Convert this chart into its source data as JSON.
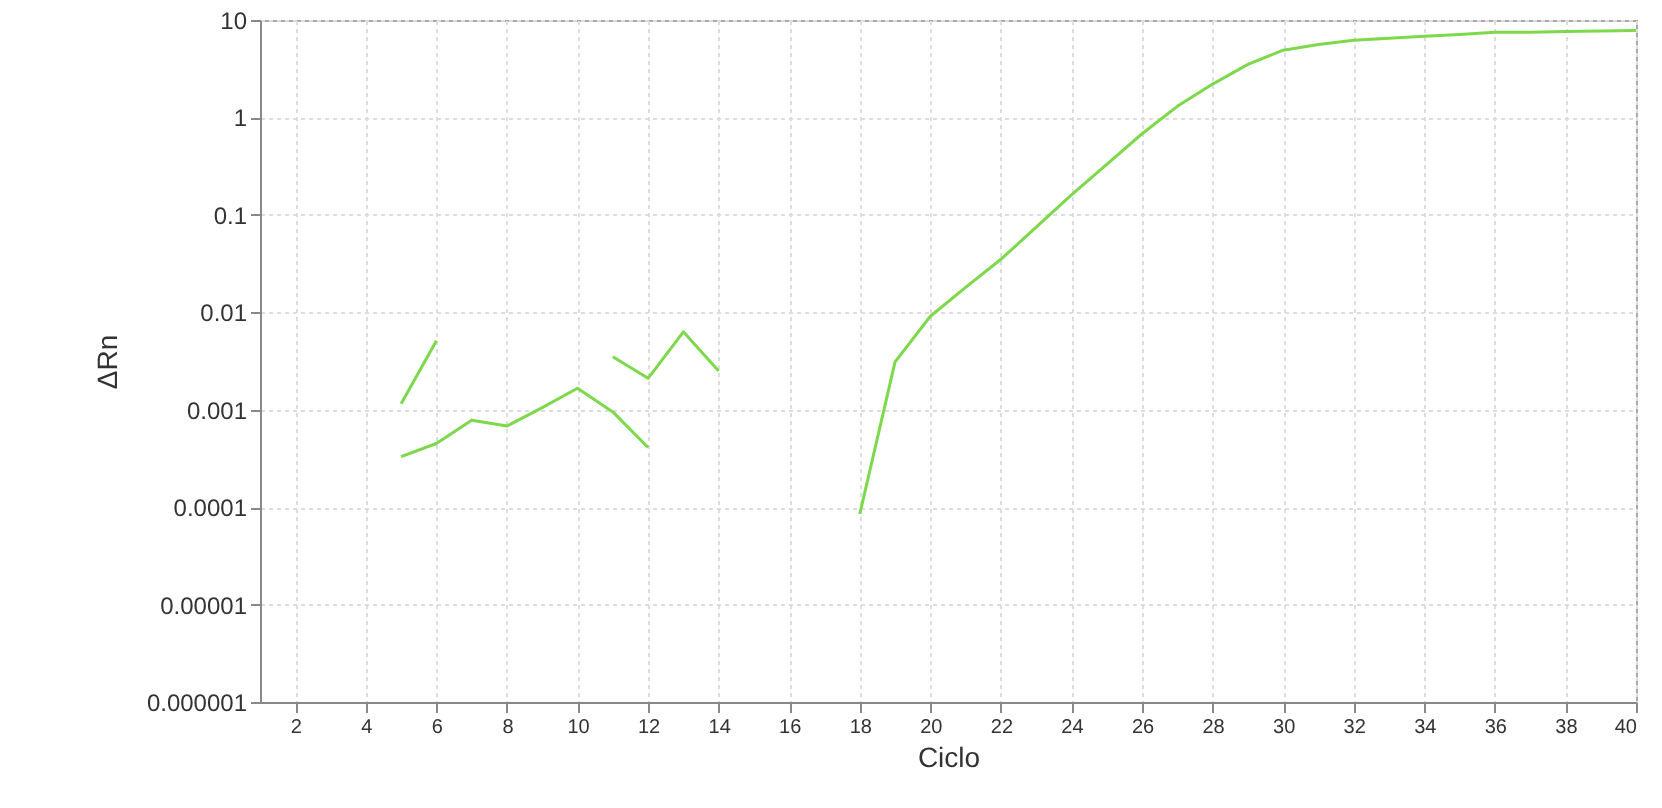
{
  "chart_data": {
    "type": "line",
    "xlabel": "Ciclo",
    "ylabel": "ΔRn",
    "log": "y",
    "grid": true,
    "marker": "none",
    "line_style": "solid",
    "xlim": [
      1,
      40
    ],
    "xticks": [
      2,
      4,
      6,
      8,
      10,
      12,
      14,
      16,
      18,
      20,
      22,
      24,
      26,
      28,
      30,
      32,
      34,
      36,
      38,
      40
    ],
    "ylim": [
      1e-06,
      10
    ],
    "yticks": [
      {
        "value": 1e-06,
        "label": "0.000001"
      },
      {
        "value": 1e-05,
        "label": "0.00001"
      },
      0.0001,
      0.001,
      0.01,
      0.1,
      1,
      10
    ],
    "series": [
      {
        "color": "#7ed84c",
        "x": [
          5,
          6,
          7,
          8,
          9,
          10,
          11,
          12
        ],
        "values": [
          0.00033,
          0.00045,
          0.00078,
          0.00068,
          0.00105,
          0.00166,
          0.00095,
          0.00041
        ]
      },
      {
        "color": "#7ed84c",
        "x": [
          5,
          6
        ],
        "values": [
          0.00115,
          0.0051
        ]
      },
      {
        "color": "#7ed84c",
        "x": [
          11,
          12,
          13,
          14
        ],
        "values": [
          0.0035,
          0.0021,
          0.0063,
          0.0025
        ]
      },
      {
        "color": "#7ed84c",
        "x": [
          18,
          19,
          20,
          21,
          22,
          23,
          24,
          25,
          26,
          27,
          28,
          29,
          30,
          31,
          32,
          33,
          34,
          35,
          36,
          37,
          38,
          39,
          40
        ],
        "values": [
          8.5e-05,
          0.0031,
          0.0091,
          0.018,
          0.035,
          0.075,
          0.16,
          0.33,
          0.68,
          1.3,
          2.2,
          3.5,
          4.9,
          5.6,
          6.2,
          6.5,
          6.8,
          7.1,
          7.5,
          7.5,
          7.6,
          7.7,
          7.8
        ]
      }
    ]
  }
}
